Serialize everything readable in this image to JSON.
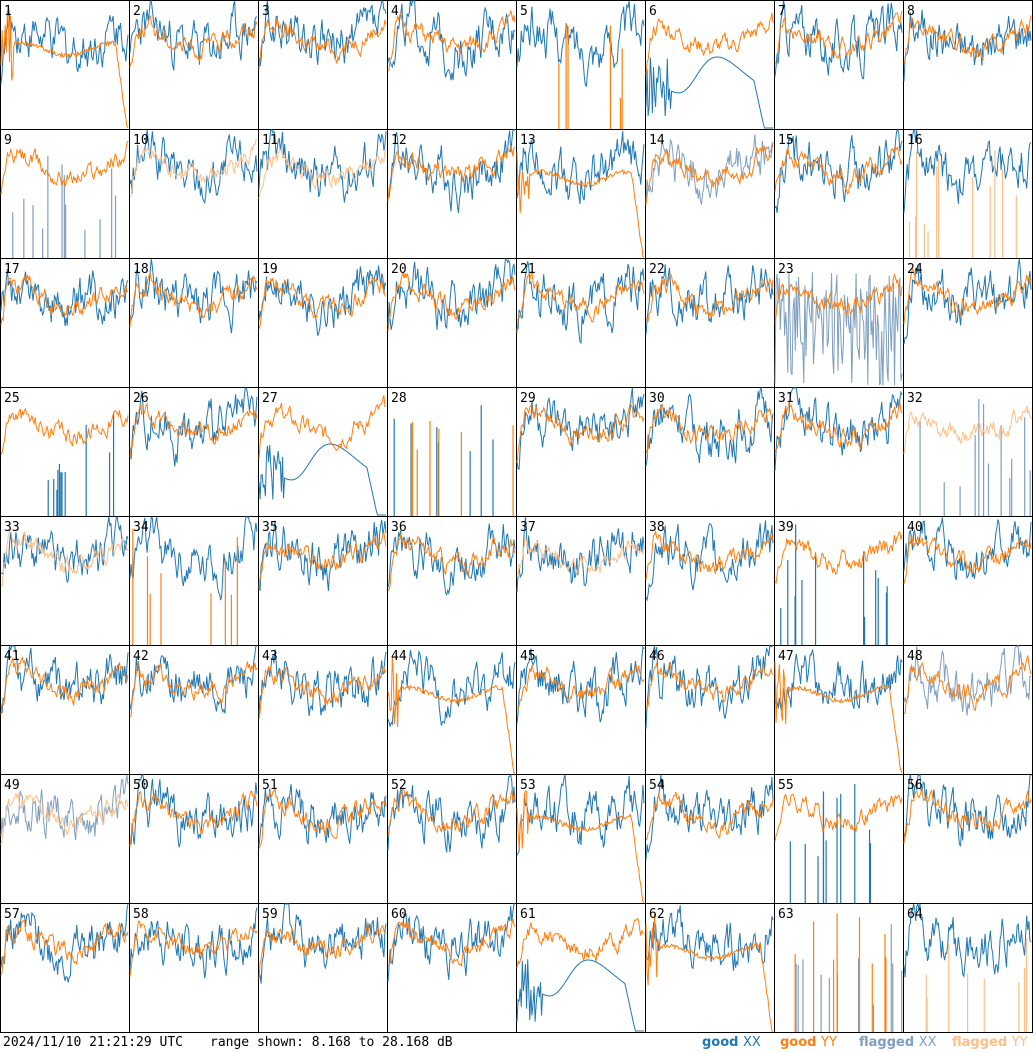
{
  "timestamp": "2024/11/10 21:21:29 UTC",
  "range_text": "range shown: 8.168 to 28.168 dB",
  "legend": [
    {
      "label": "good",
      "tag": "XX",
      "color": "#1f77b4"
    },
    {
      "label": "good",
      "tag": "YY",
      "color": "#ff7f0e"
    },
    {
      "label": "flagged",
      "tag": "XX",
      "color": "#7f9fbf"
    },
    {
      "label": "flagged",
      "tag": "YY",
      "color": "#ffbf87"
    }
  ],
  "colors": {
    "good_xx": "#1f77b4",
    "good_yy": "#ff7f0e",
    "flagged_xx": "#7f9fbf",
    "flagged_yy": "#ffbf87"
  },
  "chart_data": {
    "type": "line",
    "layout": "8x8 small multiples",
    "y_range_db": [
      8.168,
      28.168
    ],
    "series_types": [
      "good XX",
      "good YY",
      "flagged XX",
      "flagged YY"
    ],
    "panels": [
      {
        "id": "1",
        "xx": "good",
        "yy": "good",
        "xx_shape": "normal",
        "yy_shape": "dropoff"
      },
      {
        "id": "2",
        "xx": "good",
        "yy": "good",
        "xx_shape": "normal",
        "yy_shape": "normal"
      },
      {
        "id": "3",
        "xx": "good",
        "yy": "good",
        "xx_shape": "normal",
        "yy_shape": "normal"
      },
      {
        "id": "4",
        "xx": "good",
        "yy": "good",
        "xx_shape": "normal",
        "yy_shape": "normal"
      },
      {
        "id": "5",
        "xx": "good",
        "yy": "good",
        "xx_shape": "normal",
        "yy_shape": "spiky"
      },
      {
        "id": "6",
        "xx": "good",
        "yy": "good",
        "xx_shape": "dipped",
        "yy_shape": "normal"
      },
      {
        "id": "7",
        "xx": "good",
        "yy": "good",
        "xx_shape": "normal",
        "yy_shape": "normal"
      },
      {
        "id": "8",
        "xx": "good",
        "yy": "good",
        "xx_shape": "normal",
        "yy_shape": "normal"
      },
      {
        "id": "9",
        "xx": "flagged",
        "yy": "good",
        "xx_shape": "spiky",
        "yy_shape": "normal"
      },
      {
        "id": "10",
        "xx": "good",
        "yy": "flagged",
        "xx_shape": "normal",
        "yy_shape": "normal"
      },
      {
        "id": "11",
        "xx": "good",
        "yy": "flagged",
        "xx_shape": "normal",
        "yy_shape": "normal"
      },
      {
        "id": "12",
        "xx": "good",
        "yy": "good",
        "xx_shape": "normal",
        "yy_shape": "normal"
      },
      {
        "id": "13",
        "xx": "good",
        "yy": "good",
        "xx_shape": "normal",
        "yy_shape": "dropoff"
      },
      {
        "id": "14",
        "xx": "flagged",
        "yy": "good",
        "xx_shape": "normal",
        "yy_shape": "normal"
      },
      {
        "id": "15",
        "xx": "good",
        "yy": "good",
        "xx_shape": "normal",
        "yy_shape": "normal"
      },
      {
        "id": "16",
        "xx": "good",
        "yy": "flagged",
        "xx_shape": "normal",
        "yy_shape": "spiky"
      },
      {
        "id": "17",
        "xx": "good",
        "yy": "good",
        "xx_shape": "normal",
        "yy_shape": "normal"
      },
      {
        "id": "18",
        "xx": "good",
        "yy": "good",
        "xx_shape": "normal",
        "yy_shape": "normal"
      },
      {
        "id": "19",
        "xx": "good",
        "yy": "good",
        "xx_shape": "normal",
        "yy_shape": "normal"
      },
      {
        "id": "20",
        "xx": "good",
        "yy": "good",
        "xx_shape": "normal",
        "yy_shape": "normal"
      },
      {
        "id": "21",
        "xx": "good",
        "yy": "good",
        "xx_shape": "normal",
        "yy_shape": "normal"
      },
      {
        "id": "22",
        "xx": "good",
        "yy": "good",
        "xx_shape": "normal",
        "yy_shape": "normal"
      },
      {
        "id": "23",
        "xx": "flagged",
        "yy": "good",
        "xx_shape": "noisy",
        "yy_shape": "normal"
      },
      {
        "id": "24",
        "xx": "good",
        "yy": "good",
        "xx_shape": "normal",
        "yy_shape": "normal"
      },
      {
        "id": "25",
        "xx": "good",
        "yy": "good",
        "xx_shape": "spiky",
        "yy_shape": "normal"
      },
      {
        "id": "26",
        "xx": "good",
        "yy": "good",
        "xx_shape": "normal",
        "yy_shape": "normal"
      },
      {
        "id": "27",
        "xx": "good",
        "yy": "good",
        "xx_shape": "dipped",
        "yy_shape": "normal"
      },
      {
        "id": "28",
        "xx": "good",
        "yy": "good",
        "xx_shape": "spiky",
        "yy_shape": "spiky"
      },
      {
        "id": "29",
        "xx": "good",
        "yy": "good",
        "xx_shape": "normal",
        "yy_shape": "normal"
      },
      {
        "id": "30",
        "xx": "good",
        "yy": "good",
        "xx_shape": "normal",
        "yy_shape": "normal"
      },
      {
        "id": "31",
        "xx": "good",
        "yy": "good",
        "xx_shape": "normal",
        "yy_shape": "normal"
      },
      {
        "id": "32",
        "xx": "flagged",
        "yy": "flagged",
        "xx_shape": "spiky",
        "yy_shape": "normal"
      },
      {
        "id": "33",
        "xx": "good",
        "yy": "flagged",
        "xx_shape": "normal",
        "yy_shape": "normal"
      },
      {
        "id": "34",
        "xx": "good",
        "yy": "good",
        "xx_shape": "normal",
        "yy_shape": "spiky"
      },
      {
        "id": "35",
        "xx": "good",
        "yy": "good",
        "xx_shape": "normal",
        "yy_shape": "normal"
      },
      {
        "id": "36",
        "xx": "good",
        "yy": "good",
        "xx_shape": "normal",
        "yy_shape": "normal"
      },
      {
        "id": "37",
        "xx": "good",
        "yy": "flagged",
        "xx_shape": "normal",
        "yy_shape": "normal"
      },
      {
        "id": "38",
        "xx": "good",
        "yy": "good",
        "xx_shape": "normal",
        "yy_shape": "normal"
      },
      {
        "id": "39",
        "xx": "good",
        "yy": "good",
        "xx_shape": "spiky",
        "yy_shape": "normal"
      },
      {
        "id": "40",
        "xx": "good",
        "yy": "good",
        "xx_shape": "normal",
        "yy_shape": "normal"
      },
      {
        "id": "41",
        "xx": "good",
        "yy": "good",
        "xx_shape": "normal",
        "yy_shape": "normal"
      },
      {
        "id": "42",
        "xx": "good",
        "yy": "good",
        "xx_shape": "normal",
        "yy_shape": "normal"
      },
      {
        "id": "43",
        "xx": "good",
        "yy": "good",
        "xx_shape": "normal",
        "yy_shape": "normal"
      },
      {
        "id": "44",
        "xx": "good",
        "yy": "good",
        "xx_shape": "normal",
        "yy_shape": "dropoff"
      },
      {
        "id": "45",
        "xx": "good",
        "yy": "good",
        "xx_shape": "normal",
        "yy_shape": "normal"
      },
      {
        "id": "46",
        "xx": "good",
        "yy": "good",
        "xx_shape": "normal",
        "yy_shape": "normal"
      },
      {
        "id": "47",
        "xx": "good",
        "yy": "good",
        "xx_shape": "normal",
        "yy_shape": "dropoff"
      },
      {
        "id": "48",
        "xx": "flagged",
        "yy": "good",
        "xx_shape": "normal",
        "yy_shape": "normal"
      },
      {
        "id": "49",
        "xx": "flagged",
        "yy": "flagged",
        "xx_shape": "normal",
        "yy_shape": "normal"
      },
      {
        "id": "50",
        "xx": "good",
        "yy": "good",
        "xx_shape": "normal",
        "yy_shape": "normal"
      },
      {
        "id": "51",
        "xx": "good",
        "yy": "good",
        "xx_shape": "normal",
        "yy_shape": "normal"
      },
      {
        "id": "52",
        "xx": "good",
        "yy": "good",
        "xx_shape": "normal",
        "yy_shape": "normal"
      },
      {
        "id": "53",
        "xx": "good",
        "yy": "good",
        "xx_shape": "normal",
        "yy_shape": "dropoff"
      },
      {
        "id": "54",
        "xx": "good",
        "yy": "good",
        "xx_shape": "normal",
        "yy_shape": "normal"
      },
      {
        "id": "55",
        "xx": "good",
        "yy": "good",
        "xx_shape": "spiky",
        "yy_shape": "normal"
      },
      {
        "id": "56",
        "xx": "good",
        "yy": "good",
        "xx_shape": "normal",
        "yy_shape": "normal"
      },
      {
        "id": "57",
        "xx": "good",
        "yy": "good",
        "xx_shape": "normal",
        "yy_shape": "normal"
      },
      {
        "id": "58",
        "xx": "good",
        "yy": "good",
        "xx_shape": "normal",
        "yy_shape": "normal"
      },
      {
        "id": "59",
        "xx": "good",
        "yy": "good",
        "xx_shape": "normal",
        "yy_shape": "normal"
      },
      {
        "id": "60",
        "xx": "good",
        "yy": "good",
        "xx_shape": "normal",
        "yy_shape": "normal"
      },
      {
        "id": "61",
        "xx": "good",
        "yy": "good",
        "xx_shape": "dipped",
        "yy_shape": "normal"
      },
      {
        "id": "62",
        "xx": "good",
        "yy": "good",
        "xx_shape": "normal",
        "yy_shape": "dropoff"
      },
      {
        "id": "63",
        "xx": "flagged",
        "yy": "good",
        "xx_shape": "spiky",
        "yy_shape": "spiky"
      },
      {
        "id": "64",
        "xx": "good",
        "yy": "flagged",
        "xx_shape": "normal",
        "yy_shape": "spiky"
      }
    ]
  }
}
